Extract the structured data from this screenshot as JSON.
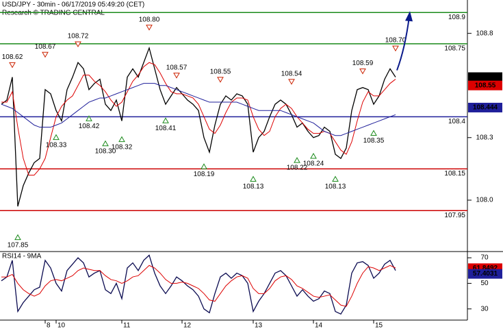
{
  "chart_data": [
    {
      "type": "line",
      "title": "USD/JPY - 30min - 06/17/2019 05:49:20 (CET)",
      "subtitle": "Research © TRADING CENTRAL",
      "ylim": [
        107.76,
        108.96
      ],
      "yticks": [
        108.8,
        108.3,
        {
          "value": 108,
          "label": "108.0"
        }
      ],
      "series": [
        {
          "color": "#000000",
          "values": [
            108.46,
            108.48,
            108.59,
            107.97,
            108.07,
            108.13,
            108.18,
            108.2,
            108.53,
            108.51,
            108.43,
            108.38,
            108.53,
            108.59,
            108.66,
            108.63,
            108.53,
            108.56,
            108.58,
            108.46,
            108.43,
            108.48,
            108.38,
            108.59,
            108.63,
            108.59,
            108.66,
            108.73,
            108.63,
            108.53,
            108.46,
            108.5,
            108.54,
            108.51,
            108.48,
            108.46,
            108.43,
            108.3,
            108.23,
            108.36,
            108.46,
            108.5,
            108.48,
            108.51,
            108.5,
            108.46,
            108.23,
            108.3,
            108.33,
            108.4,
            108.46,
            108.48,
            108.46,
            108.41,
            108.35,
            108.37,
            108.33,
            108.3,
            108.31,
            108.35,
            108.33,
            108.22,
            108.2,
            108.25,
            108.43,
            108.53,
            108.54,
            108.53,
            108.46,
            108.5,
            108.58,
            108.63,
            108.59
          ]
        },
        {
          "color": "#dd0000",
          "values": [
            108.47,
            108.47,
            108.52,
            108.35,
            108.2,
            108.12,
            108.12,
            108.15,
            108.2,
            108.3,
            108.4,
            108.45,
            108.48,
            108.5,
            108.55,
            108.6,
            108.6,
            108.57,
            108.55,
            108.52,
            108.48,
            108.45,
            108.47,
            108.52,
            108.57,
            108.6,
            108.64,
            108.66,
            108.65,
            108.61,
            108.56,
            108.52,
            108.51,
            108.51,
            108.5,
            108.49,
            108.46,
            108.4,
            108.34,
            108.32,
            108.36,
            108.42,
            108.47,
            108.49,
            108.49,
            108.48,
            108.4,
            108.34,
            108.31,
            108.33,
            108.4,
            108.44,
            108.46,
            108.44,
            108.4,
            108.37,
            108.34,
            108.32,
            108.32,
            108.33,
            108.32,
            108.28,
            108.24,
            108.22,
            108.28,
            108.38,
            108.47,
            108.52,
            108.5,
            108.5,
            108.53,
            108.56,
            108.58
          ]
        },
        {
          "color": "#1f1f9a",
          "values": [
            108.46,
            108.45,
            108.44,
            108.42,
            108.4,
            108.38,
            108.36,
            108.35,
            108.35,
            108.35,
            108.36,
            108.37,
            108.39,
            108.41,
            108.43,
            108.45,
            108.47,
            108.48,
            108.49,
            108.49,
            108.5,
            108.51,
            108.52,
            108.53,
            108.54,
            108.55,
            108.56,
            108.56,
            108.56,
            108.55,
            108.55,
            108.54,
            108.53,
            108.52,
            108.51,
            108.5,
            108.49,
            108.48,
            108.47,
            108.47,
            108.47,
            108.47,
            108.47,
            108.47,
            108.46,
            108.45,
            108.44,
            108.43,
            108.43,
            108.43,
            108.43,
            108.43,
            108.42,
            108.41,
            108.4,
            108.39,
            108.38,
            108.37,
            108.35,
            108.33,
            108.32,
            108.31,
            108.31,
            108.32,
            108.33,
            108.34,
            108.35,
            108.36,
            108.37,
            108.38,
            108.39,
            108.4,
            108.41
          ]
        }
      ],
      "pivot_highs": {
        "color": "#cc2200",
        "values": [
          null,
          null,
          108.62,
          null,
          null,
          null,
          null,
          null,
          108.67,
          null,
          null,
          null,
          null,
          null,
          108.72,
          null,
          null,
          null,
          null,
          null,
          null,
          null,
          null,
          null,
          null,
          null,
          null,
          108.8,
          null,
          null,
          null,
          null,
          108.57,
          null,
          null,
          null,
          null,
          null,
          null,
          null,
          108.55,
          null,
          null,
          null,
          null,
          null,
          null,
          null,
          null,
          null,
          null,
          null,
          null,
          108.54,
          null,
          null,
          null,
          null,
          null,
          null,
          null,
          null,
          null,
          null,
          null,
          null,
          108.59,
          null,
          null,
          null,
          null,
          null,
          108.7
        ],
        "value_labels": [
          null,
          null,
          null,
          null,
          null,
          null,
          null,
          null,
          null,
          null,
          null,
          null,
          null,
          null,
          null,
          null,
          null,
          null,
          null,
          null,
          null,
          null,
          null,
          null,
          null,
          null,
          null,
          "108.80",
          null,
          null,
          null,
          null,
          null,
          null,
          null,
          null,
          null,
          null,
          null,
          null,
          null,
          null,
          null,
          null,
          null,
          null,
          null,
          null,
          null,
          null,
          null,
          null,
          null,
          null,
          null,
          null,
          null,
          null,
          null,
          null,
          null,
          null,
          null,
          null,
          null,
          null,
          null,
          null,
          null,
          null,
          null,
          null,
          "108.70"
        ]
      },
      "pivot_lows": {
        "color": "#1a8a1a",
        "values": [
          null,
          null,
          null,
          107.85,
          null,
          null,
          null,
          null,
          null,
          null,
          108.33,
          null,
          null,
          null,
          null,
          null,
          108.42,
          null,
          null,
          108.3,
          null,
          null,
          108.32,
          null,
          null,
          null,
          null,
          null,
          null,
          null,
          108.41,
          null,
          null,
          null,
          null,
          null,
          null,
          108.19,
          null,
          null,
          null,
          null,
          null,
          null,
          null,
          null,
          108.13,
          null,
          null,
          null,
          null,
          null,
          null,
          null,
          108.22,
          null,
          null,
          108.24,
          null,
          null,
          null,
          108.13,
          null,
          null,
          null,
          null,
          null,
          null,
          108.35,
          null,
          null,
          null,
          null
        ],
        "value_labels": [
          null,
          null,
          null,
          null,
          null,
          null,
          null,
          null,
          null,
          null,
          null,
          null,
          null,
          null,
          null,
          null,
          null,
          null,
          null,
          "108.30",
          null,
          null,
          null,
          null,
          null,
          null,
          null,
          null,
          null,
          null,
          null,
          null,
          null,
          null,
          null,
          null,
          null,
          null,
          null,
          null,
          null,
          null,
          null,
          null,
          null,
          null,
          null,
          null,
          null,
          null,
          null,
          null,
          null,
          null,
          null,
          null,
          null,
          null,
          null,
          null,
          null,
          null,
          null,
          null,
          null,
          null,
          null,
          null,
          null,
          null,
          null,
          null,
          null
        ]
      },
      "levels": [
        {
          "value": 108.9,
          "color": "#1a8a1a"
        },
        {
          "value": 108.75,
          "color": "#1a8a1a"
        },
        {
          "value": 108.4,
          "color": "#1f1f9a"
        },
        {
          "value": 108.15,
          "color": "#cc0000"
        },
        {
          "value": 107.95,
          "color": "#cc0000"
        }
      ],
      "markers": [
        {
          "value": 108.59,
          "color": "#000000"
        },
        {
          "value": 108.55,
          "color": "#dd0000"
        },
        {
          "value": 108.444,
          "color": "#1f1f9a"
        }
      ],
      "projection_target": 108.9,
      "projection_color": "#0a1a8a"
    },
    {
      "type": "line",
      "title": "RSI14 - 9MA",
      "categories": [
        null,
        null,
        null,
        null,
        null,
        null,
        null,
        null,
        "8",
        null,
        "10",
        null,
        null,
        null,
        null,
        null,
        null,
        null,
        null,
        null,
        null,
        null,
        "11",
        null,
        null,
        null,
        null,
        null,
        null,
        null,
        null,
        null,
        null,
        "12",
        null,
        null,
        null,
        null,
        null,
        null,
        null,
        null,
        null,
        null,
        null,
        null,
        "13",
        null,
        null,
        null,
        null,
        null,
        null,
        null,
        null,
        null,
        null,
        "14",
        null,
        null,
        null,
        null,
        null,
        null,
        null,
        null,
        null,
        null,
        "15",
        null,
        null,
        null,
        null
      ],
      "ylim": [
        21.8,
        73.8
      ],
      "yticks": [
        70,
        50,
        30
      ],
      "series": [
        {
          "color": "#0a0a50",
          "values": [
            52,
            55,
            68,
            28,
            35,
            40,
            45,
            47,
            68,
            62,
            50,
            44,
            60,
            65,
            70,
            66,
            55,
            58,
            60,
            45,
            42,
            50,
            38,
            62,
            66,
            60,
            68,
            72,
            58,
            48,
            42,
            48,
            55,
            52,
            48,
            45,
            40,
            30,
            27,
            42,
            55,
            58,
            54,
            58,
            56,
            50,
            28,
            36,
            42,
            50,
            58,
            60,
            56,
            48,
            40,
            45,
            40,
            36,
            38,
            44,
            42,
            28,
            26,
            33,
            58,
            66,
            67,
            64,
            54,
            58,
            65,
            68,
            60
          ]
        },
        {
          "color": "#dd0000",
          "values": [
            55,
            55,
            57,
            50,
            45,
            42,
            40,
            42,
            48,
            52,
            53,
            52,
            54,
            56,
            60,
            62,
            61,
            60,
            60,
            56,
            53,
            52,
            50,
            52,
            55,
            56,
            60,
            64,
            62,
            58,
            53,
            50,
            50,
            51,
            50,
            48,
            46,
            42,
            37,
            36,
            42,
            48,
            52,
            55,
            56,
            54,
            46,
            42,
            42,
            46,
            52,
            55,
            56,
            53,
            48,
            46,
            43,
            40,
            39,
            40,
            41,
            37,
            33,
            32,
            40,
            50,
            58,
            63,
            62,
            60,
            62,
            64,
            62
          ]
        }
      ],
      "markers": [
        {
          "value": 61.8492,
          "color": "#dd0000"
        },
        {
          "value": 57.4031,
          "color": "#1f1f9a"
        }
      ]
    }
  ]
}
